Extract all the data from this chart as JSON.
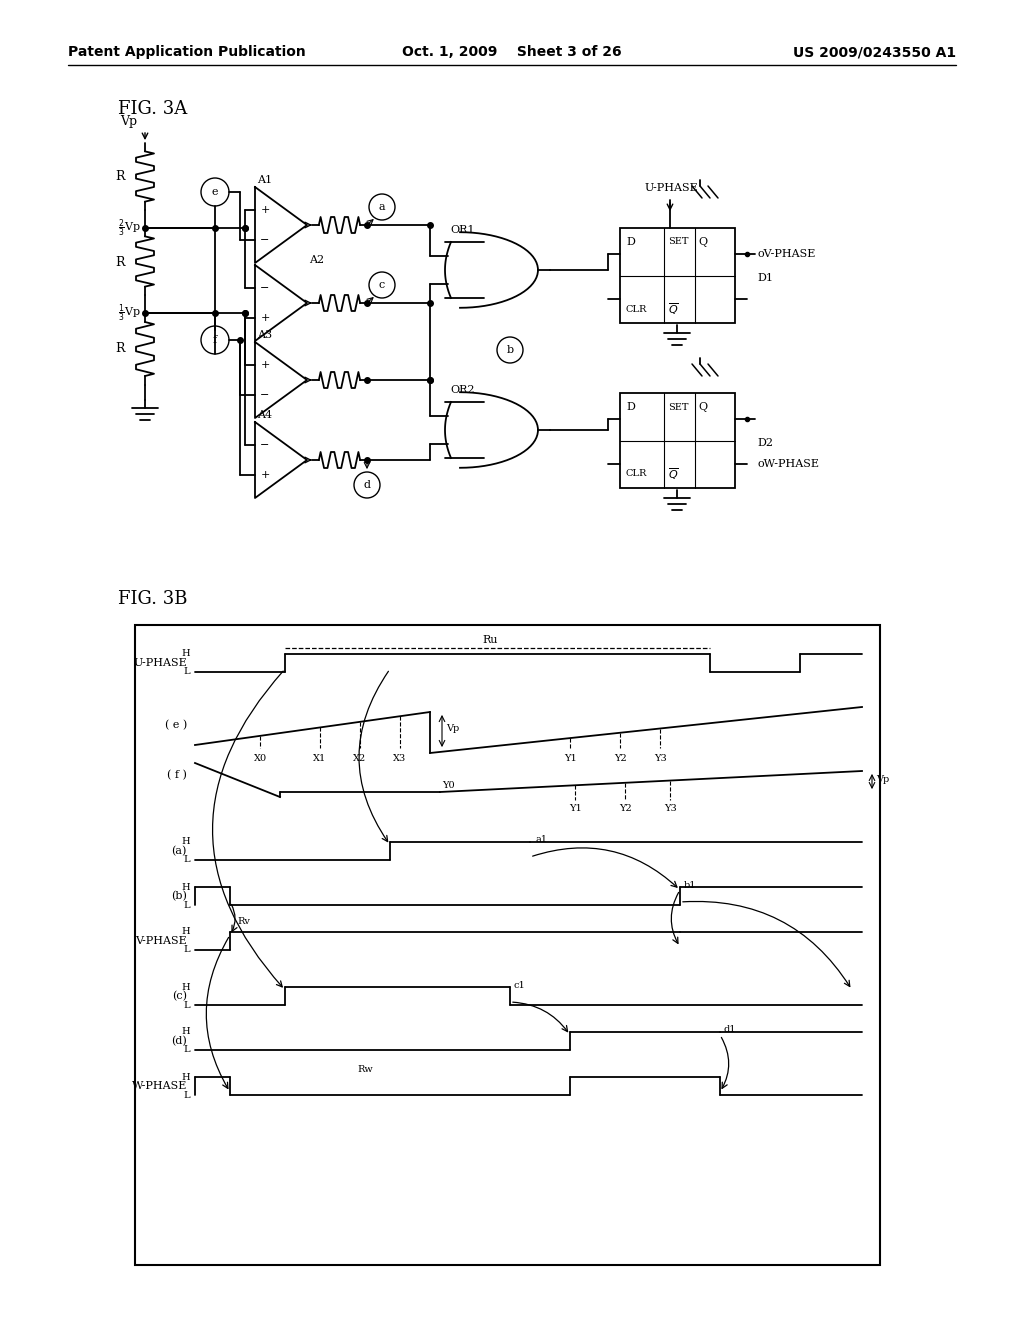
{
  "header_left": "Patent Application Publication",
  "header_center": "Oct. 1, 2009    Sheet 3 of 26",
  "header_right": "US 2009/0243550 A1",
  "fig3a_label": "FIG. 3A",
  "fig3b_label": "FIG. 3B",
  "bg_color": "#ffffff",
  "line_color": "#000000"
}
